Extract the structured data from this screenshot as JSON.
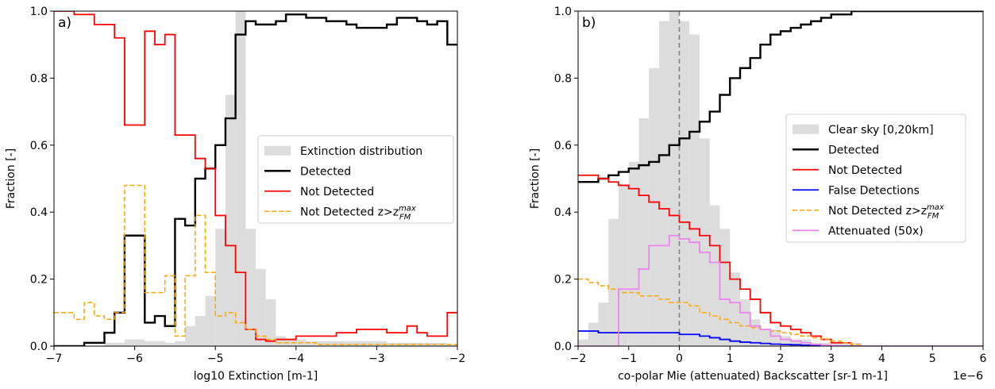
{
  "chart_data": [
    {
      "type": "line",
      "panel_label": "a)",
      "xlabel": "log10 Extinction [m-1]",
      "ylabel": "Fraction [-]",
      "xlim": [
        -7,
        -2
      ],
      "ylim": [
        0,
        1
      ],
      "xticks": [
        -7,
        -6,
        -5,
        -4,
        -3,
        -2
      ],
      "xtick_labels": [
        "−7",
        "−6",
        "−5",
        "−4",
        "−3",
        "−2"
      ],
      "yticks": [
        0,
        0.2,
        0.4,
        0.6,
        0.8,
        1
      ],
      "ytick_labels": [
        "0.0",
        "0.2",
        "0.4",
        "0.6",
        "0.8",
        "1.0"
      ],
      "bin_edges": [
        -7.0,
        -6.875,
        -6.75,
        -6.625,
        -6.5,
        -6.375,
        -6.25,
        -6.125,
        -6.0,
        -5.875,
        -5.75,
        -5.625,
        -5.5,
        -5.375,
        -5.25,
        -5.125,
        -5.0,
        -4.875,
        -4.75,
        -4.625,
        -4.5,
        -4.375,
        -4.25,
        -4.125,
        -4.0,
        -3.875,
        -3.75,
        -3.625,
        -3.5,
        -3.375,
        -3.25,
        -3.125,
        -3.0,
        -2.875,
        -2.75,
        -2.625,
        -2.5,
        -2.375,
        -2.25,
        -2.125,
        -2.0
      ],
      "legend": "center-right",
      "series": [
        {
          "name": "Extinction distribution",
          "kind": "bar",
          "color": "#dcdcdc",
          "values": [
            0,
            0,
            0,
            0,
            0,
            0.01,
            0.01,
            0.02,
            0.02,
            0.015,
            0.015,
            0.01,
            0.015,
            0.06,
            0.09,
            0.15,
            0.35,
            0.75,
            1.0,
            0.35,
            0.23,
            0.14,
            0.03,
            0.02,
            0.02,
            0.015,
            0.015,
            0.015,
            0.015,
            0.015,
            0.015,
            0.015,
            0.015,
            0.01,
            0.01,
            0.01,
            0.01,
            0.01,
            0.01,
            0.005
          ]
        },
        {
          "name": "Detected",
          "kind": "step",
          "color": "#000000",
          "width": 2.4,
          "values": [
            0,
            0,
            0,
            0.01,
            0.01,
            0.04,
            0.1,
            0.33,
            0.33,
            0.07,
            0.09,
            0.06,
            0.38,
            0.36,
            0.5,
            0.53,
            0.6,
            0.68,
            0.93,
            0.97,
            0.96,
            0.96,
            0.97,
            0.99,
            0.99,
            0.98,
            0.98,
            0.97,
            0.97,
            0.96,
            0.95,
            0.95,
            0.95,
            0.96,
            0.98,
            0.98,
            0.97,
            0.96,
            0.97,
            0.9
          ]
        },
        {
          "name": "Not Detected",
          "kind": "step",
          "color": "#ff0000",
          "width": 1.8,
          "values": [
            1.0,
            1.0,
            0.99,
            0.99,
            0.96,
            0.96,
            0.92,
            0.66,
            0.66,
            0.94,
            0.9,
            0.93,
            0.63,
            0.63,
            0.56,
            0.53,
            0.39,
            0.3,
            0.22,
            0.05,
            0.02,
            0.015,
            0.02,
            0.02,
            0.03,
            0.03,
            0.03,
            0.03,
            0.04,
            0.04,
            0.05,
            0.05,
            0.05,
            0.04,
            0.04,
            0.06,
            0.04,
            0.03,
            0.03,
            0.1
          ]
        },
        {
          "name": "Not Detected z>z_FM^max",
          "kind": "step",
          "color": "#ffa500",
          "width": 1.5,
          "dashed": true,
          "values": [
            0.1,
            0.1,
            0.08,
            0.13,
            0.09,
            0.08,
            0.1,
            0.48,
            0.48,
            0.16,
            0.16,
            0.21,
            0.03,
            0.21,
            0.39,
            0.22,
            0.09,
            0.1,
            0.07,
            0.05,
            0.03,
            0.02,
            0.01,
            0.01,
            0.01,
            0.01,
            0.005,
            0.005,
            0.005,
            0.005,
            0.005,
            0.005,
            0.005,
            0.005,
            0.005,
            0.005,
            0.005,
            0.005,
            0.005,
            0.005
          ]
        }
      ]
    },
    {
      "type": "line",
      "panel_label": "b)",
      "xlabel": "co-polar Mie (attenuated) Backscatter [sr-1 m-1]",
      "x_offset_text": "1e−6",
      "ylabel": "Fraction [-]",
      "xlim": [
        -2e-06,
        6e-06
      ],
      "ylim": [
        0,
        1
      ],
      "xticks": [
        -2,
        -1,
        0,
        1,
        2,
        3,
        4,
        5,
        6
      ],
      "xtick_labels": [
        "−2",
        "−1",
        "0",
        "1",
        "2",
        "3",
        "4",
        "5",
        "6"
      ],
      "yticks": [
        0,
        0.2,
        0.4,
        0.6,
        0.8,
        1
      ],
      "ytick_labels": [
        "0.0",
        "0.2",
        "0.4",
        "0.6",
        "0.8",
        "1.0"
      ],
      "vline_x": 0,
      "bin_edges": [
        -2.0,
        -1.8,
        -1.6,
        -1.4,
        -1.2,
        -1.0,
        -0.8,
        -0.6,
        -0.4,
        -0.2,
        0.0,
        0.2,
        0.4,
        0.6,
        0.8,
        1.0,
        1.2,
        1.4,
        1.6,
        1.8,
        2.0,
        2.2,
        2.4,
        2.6,
        2.8,
        3.0,
        3.2,
        3.4,
        3.6,
        3.8,
        4.0,
        4.2,
        4.4,
        4.6,
        4.8,
        5.0,
        5.2,
        5.4,
        5.6,
        5.8,
        6.0
      ],
      "legend": "center-right",
      "series": [
        {
          "name": "Clear sky [0,20km]",
          "kind": "bar",
          "color": "#dcdcdc",
          "values": [
            0.02,
            0.07,
            0.13,
            0.38,
            0.48,
            0.55,
            0.68,
            0.83,
            0.97,
            1.0,
            0.97,
            0.93,
            0.62,
            0.42,
            0.35,
            0.22,
            0.14,
            0.08,
            0.05,
            0.05,
            0.03,
            0.02,
            0.02,
            0.01,
            0.01,
            0.01,
            0.01,
            0.01,
            0,
            0,
            0,
            0,
            0,
            0,
            0,
            0,
            0,
            0,
            0,
            0
          ]
        },
        {
          "name": "Detected",
          "kind": "step",
          "color": "#000000",
          "width": 2.4,
          "values": [
            0.49,
            0.49,
            0.5,
            0.51,
            0.52,
            0.53,
            0.54,
            0.55,
            0.57,
            0.6,
            0.62,
            0.64,
            0.67,
            0.7,
            0.75,
            0.8,
            0.83,
            0.86,
            0.9,
            0.93,
            0.94,
            0.95,
            0.96,
            0.97,
            0.98,
            0.99,
            0.99,
            1.0,
            1.0,
            1.0,
            1.0,
            1.0,
            1.0,
            1.0,
            1.0,
            1.0,
            1.0,
            1.0,
            1.0,
            1.0
          ]
        },
        {
          "name": "Not Detected",
          "kind": "step",
          "color": "#ff0000",
          "width": 1.8,
          "values": [
            0.51,
            0.51,
            0.5,
            0.49,
            0.48,
            0.47,
            0.45,
            0.43,
            0.41,
            0.39,
            0.37,
            0.35,
            0.33,
            0.3,
            0.25,
            0.2,
            0.17,
            0.14,
            0.1,
            0.07,
            0.06,
            0.05,
            0.04,
            0.03,
            0.02,
            0.01,
            0.01,
            0,
            0,
            0,
            0,
            0,
            0,
            0,
            0,
            0,
            0,
            0,
            0,
            0
          ]
        },
        {
          "name": "False Detections",
          "kind": "step",
          "color": "#0000ff",
          "width": 1.8,
          "values": [
            0.045,
            0.045,
            0.04,
            0.04,
            0.04,
            0.04,
            0.04,
            0.04,
            0.04,
            0.04,
            0.035,
            0.035,
            0.03,
            0.025,
            0.02,
            0.015,
            0.012,
            0.01,
            0.008,
            0.006,
            0.005,
            0.004,
            0.003,
            0.002,
            0.001,
            0,
            0,
            0,
            0,
            0,
            0,
            0,
            0,
            0,
            0,
            0,
            0,
            0,
            0,
            0
          ]
        },
        {
          "name": "Not Detected z>z_FM^max",
          "kind": "step",
          "color": "#ffa500",
          "width": 1.5,
          "dashed": true,
          "values": [
            0.2,
            0.19,
            0.18,
            0.17,
            0.16,
            0.16,
            0.15,
            0.15,
            0.14,
            0.13,
            0.13,
            0.12,
            0.1,
            0.09,
            0.08,
            0.07,
            0.06,
            0.055,
            0.05,
            0.045,
            0.04,
            0.035,
            0.03,
            0.025,
            0.02,
            0.015,
            0.01,
            0.005,
            0,
            0,
            0,
            0,
            0,
            0,
            0,
            0,
            0,
            0,
            0,
            0
          ]
        },
        {
          "name": "Attenuated (50x)",
          "kind": "step",
          "color": "#ee82ee",
          "width": 1.8,
          "values": [
            0,
            0,
            0,
            0,
            0.17,
            0.17,
            0.23,
            0.3,
            0.3,
            0.33,
            0.32,
            0.31,
            0.28,
            0.25,
            0.14,
            0.13,
            0.1,
            0.06,
            0.05,
            0.03,
            0.02,
            0.015,
            0.01,
            0.005,
            0.003,
            0.001,
            0,
            0,
            0,
            0,
            0,
            0,
            0,
            0,
            0,
            0,
            0,
            0,
            0,
            0
          ]
        }
      ]
    }
  ]
}
